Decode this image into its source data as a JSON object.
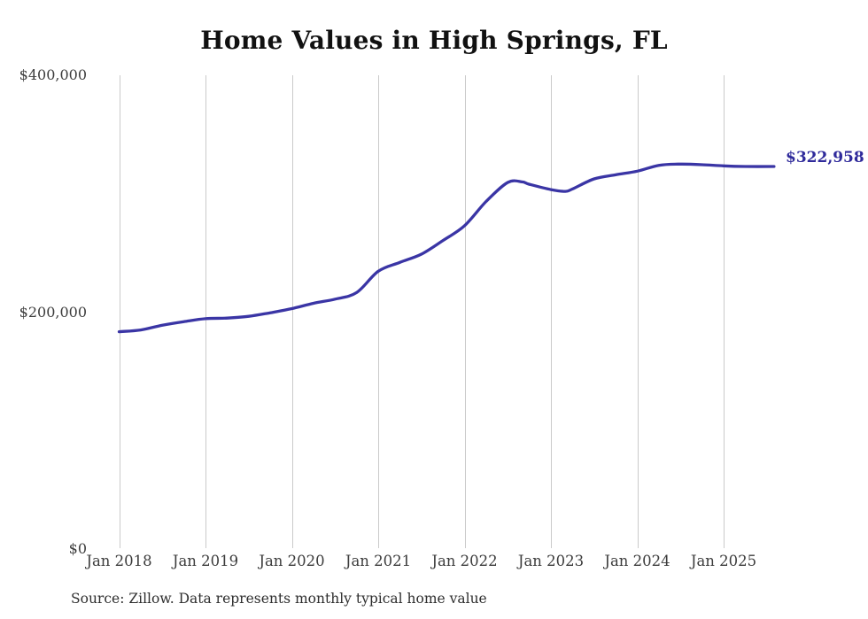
{
  "page": {
    "title": "Home Values in High Springs, FL",
    "source_note": "Source: Zillow. Data represents monthly typical home value"
  },
  "chart_data": {
    "type": "line",
    "title": "Home Values in High Springs, FL",
    "series_name": "Monthly typical home value",
    "unit": "USD",
    "line_color": "#3a35a5",
    "end_label": "$322,958",
    "end_label_color": "#2f2a9b",
    "end_value": 322958,
    "ylim": [
      0,
      400000
    ],
    "grid": "vertical-yearly",
    "legend": "none",
    "y_ticks": [
      {
        "label": "$0",
        "value": 0
      },
      {
        "label": "$200,000",
        "value": 200000
      },
      {
        "label": "$400,000",
        "value": 400000
      }
    ],
    "x_ticks": [
      {
        "label": "Jan 2018",
        "month_index": 0
      },
      {
        "label": "Jan 2019",
        "month_index": 12
      },
      {
        "label": "Jan 2020",
        "month_index": 24
      },
      {
        "label": "Jan 2021",
        "month_index": 36
      },
      {
        "label": "Jan 2022",
        "month_index": 48
      },
      {
        "label": "Jan 2023",
        "month_index": 60
      },
      {
        "label": "Jan 2024",
        "month_index": 72
      },
      {
        "label": "Jan 2025",
        "month_index": 84
      }
    ],
    "points": [
      {
        "x": "Jan 2018",
        "m": 0,
        "value": 183500
      },
      {
        "x": "Apr 2018",
        "m": 3,
        "value": 185000
      },
      {
        "x": "Jul 2018",
        "m": 6,
        "value": 189000
      },
      {
        "x": "Oct 2018",
        "m": 9,
        "value": 192000
      },
      {
        "x": "Jan 2019",
        "m": 12,
        "value": 194500
      },
      {
        "x": "Apr 2019",
        "m": 15,
        "value": 195000
      },
      {
        "x": "Jul 2019",
        "m": 18,
        "value": 196500
      },
      {
        "x": "Oct 2019",
        "m": 21,
        "value": 199500
      },
      {
        "x": "Jan 2020",
        "m": 24,
        "value": 203000
      },
      {
        "x": "Apr 2020",
        "m": 27,
        "value": 207500
      },
      {
        "x": "Jul 2020",
        "m": 30,
        "value": 211000
      },
      {
        "x": "Oct 2020",
        "m": 33,
        "value": 216500
      },
      {
        "x": "Jan 2021",
        "m": 36,
        "value": 234500
      },
      {
        "x": "Apr 2021",
        "m": 39,
        "value": 242000
      },
      {
        "x": "Jul 2021",
        "m": 42,
        "value": 249000
      },
      {
        "x": "Oct 2021",
        "m": 45,
        "value": 260500
      },
      {
        "x": "Jan 2022",
        "m": 48,
        "value": 273000
      },
      {
        "x": "Apr 2022",
        "m": 51,
        "value": 293500
      },
      {
        "x": "Jul 2022",
        "m": 54,
        "value": 309500
      },
      {
        "x": "Sep 2022",
        "m": 56,
        "value": 310000
      },
      {
        "x": "Oct 2022",
        "m": 57,
        "value": 308000
      },
      {
        "x": "Jan 2023",
        "m": 60,
        "value": 303500
      },
      {
        "x": "Mar 2023",
        "m": 62,
        "value": 302000
      },
      {
        "x": "Apr 2023",
        "m": 63,
        "value": 304000
      },
      {
        "x": "Jul 2023",
        "m": 66,
        "value": 312500
      },
      {
        "x": "Oct 2023",
        "m": 69,
        "value": 316000
      },
      {
        "x": "Jan 2024",
        "m": 72,
        "value": 319000
      },
      {
        "x": "Apr 2024",
        "m": 75,
        "value": 324000
      },
      {
        "x": "Jul 2024",
        "m": 78,
        "value": 325000
      },
      {
        "x": "Oct 2024",
        "m": 81,
        "value": 324500
      },
      {
        "x": "Jan 2025",
        "m": 84,
        "value": 323500
      },
      {
        "x": "Apr 2025",
        "m": 87,
        "value": 323000
      },
      {
        "x": "Aug 2025",
        "m": 91,
        "value": 322958
      }
    ]
  }
}
